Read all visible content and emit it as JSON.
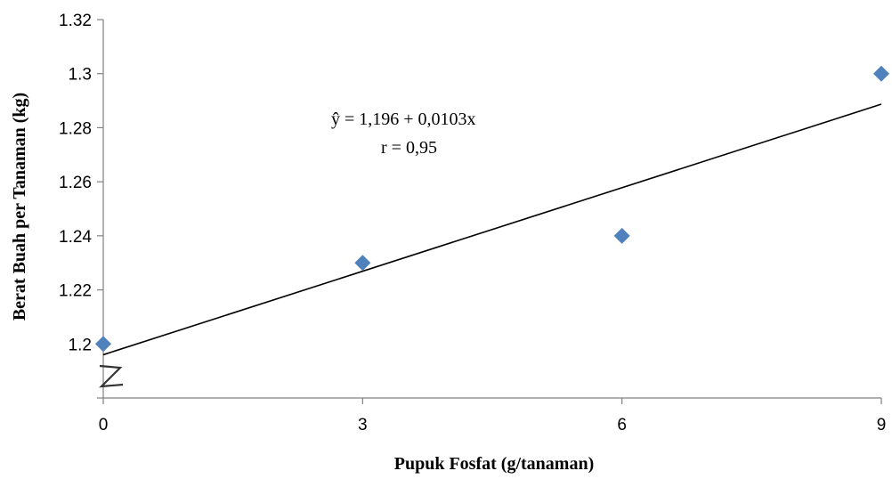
{
  "chart_data": {
    "type": "scatter",
    "title": "",
    "xlabel": "Pupuk Fosfat (g/tanaman)",
    "ylabel": "Berat Buah per Tanaman (kg)",
    "x_ticks": [
      "0",
      "3",
      "6",
      "9"
    ],
    "y_ticks": [
      "1.2",
      "1.22",
      "1.24",
      "1.26",
      "1.28",
      "1.3",
      "1.32"
    ],
    "xlim": [
      0,
      9
    ],
    "ylim": [
      1.18,
      1.32
    ],
    "grid": false,
    "axis_break": true,
    "points": [
      {
        "x": 0,
        "y": 1.2
      },
      {
        "x": 3,
        "y": 1.23
      },
      {
        "x": 6,
        "y": 1.24
      },
      {
        "x": 9,
        "y": 1.3
      }
    ],
    "trendline": {
      "intercept": 1.196,
      "slope": 0.0103
    },
    "annotations": [
      "ŷ = 1,196 +  0,0103x",
      "r = 0,95"
    ],
    "colors": {
      "marker": "#4f81bd",
      "trendline": "#000000",
      "axis": "#808080"
    }
  }
}
